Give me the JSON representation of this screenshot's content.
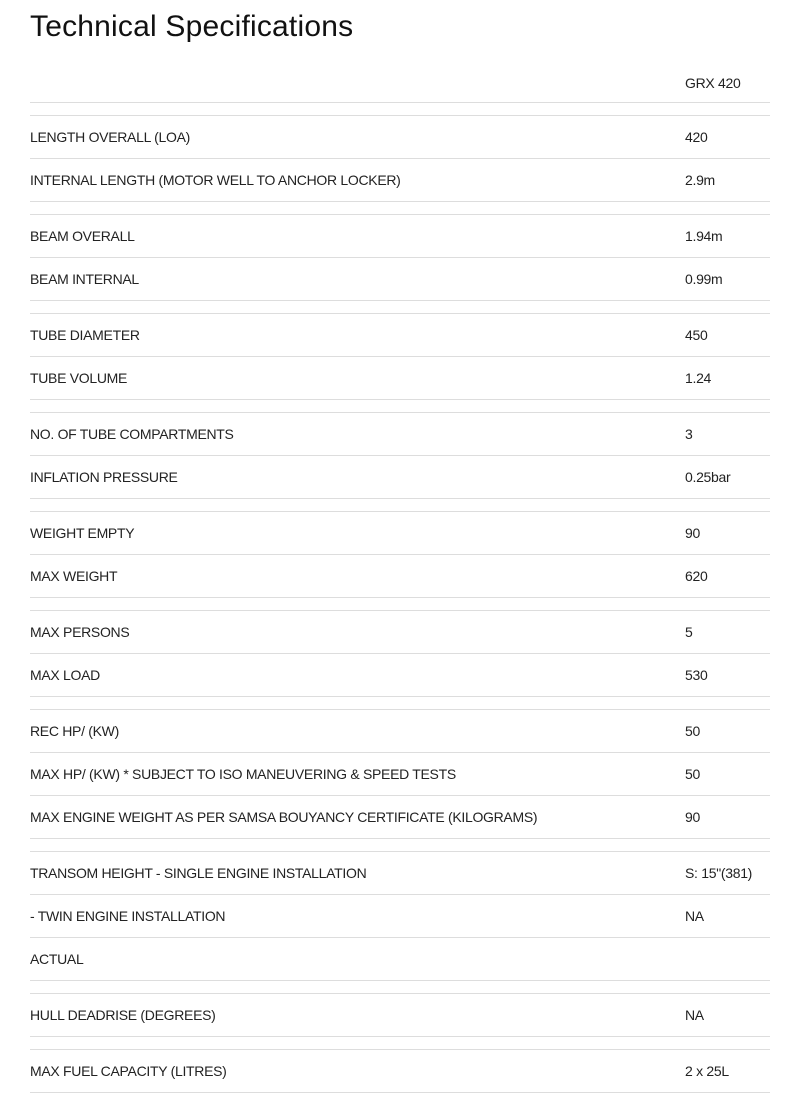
{
  "title": "Technical Specifications",
  "model": "GRX 420",
  "groups": [
    [
      {
        "label": "LENGTH OVERALL (LOA)",
        "value": "420"
      },
      {
        "label": "INTERNAL LENGTH (MOTOR WELL TO ANCHOR LOCKER)",
        "value": "2.9m"
      }
    ],
    [
      {
        "label": "BEAM OVERALL",
        "value": "1.94m"
      },
      {
        "label": "BEAM INTERNAL",
        "value": "0.99m"
      }
    ],
    [
      {
        "label": "TUBE DIAMETER",
        "value": "450"
      },
      {
        "label": "TUBE VOLUME",
        "value": "1.24"
      }
    ],
    [
      {
        "label": "NO. OF TUBE COMPARTMENTS",
        "value": "3"
      },
      {
        "label": "INFLATION PRESSURE",
        "value": "0.25bar"
      }
    ],
    [
      {
        "label": "WEIGHT EMPTY",
        "value": "90"
      },
      {
        "label": "MAX WEIGHT",
        "value": "620"
      }
    ],
    [
      {
        "label": "MAX PERSONS",
        "value": "5"
      },
      {
        "label": "MAX LOAD",
        "value": "530"
      }
    ],
    [
      {
        "label": "REC HP/ (KW)",
        "value": "50"
      },
      {
        "label": "MAX HP/ (KW) * SUBJECT TO ISO MANEUVERING & SPEED TESTS",
        "value": "50"
      },
      {
        "label": "MAX ENGINE WEIGHT AS PER SAMSA BOUYANCY CERTIFICATE (KILOGRAMS)",
        "value": "90"
      }
    ],
    [
      {
        "label": "TRANSOM HEIGHT - SINGLE ENGINE INSTALLATION",
        "value": "S: 15\"(381)"
      },
      {
        "label": "- TWIN ENGINE INSTALLATION",
        "value": "NA"
      },
      {
        "label": "ACTUAL",
        "value": ""
      }
    ],
    [
      {
        "label": "HULL DEADRISE (DEGREES)",
        "value": "NA"
      }
    ],
    [
      {
        "label": "MAX FUEL CAPACITY (LITRES)",
        "value": "2 x 25L"
      }
    ]
  ]
}
